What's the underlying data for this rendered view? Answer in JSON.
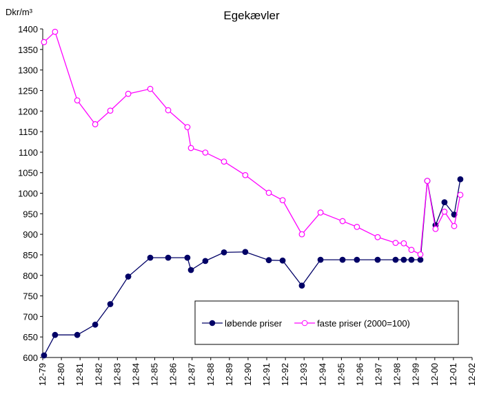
{
  "chart_data": {
    "type": "line",
    "title": "Egekævler",
    "y_label": "Dkr/m³",
    "x": [
      1980.07,
      1980.66,
      1981.85,
      1982.81,
      1983.62,
      1984.58,
      1985.76,
      1986.72,
      1987.75,
      1987.94,
      1988.71,
      1989.71,
      1990.85,
      1992.11,
      1992.85,
      1993.88,
      1994.88,
      1996.06,
      1996.83,
      1997.94,
      1998.9,
      1999.34,
      1999.75,
      2000.23,
      2000.6,
      2001.04,
      2001.52,
      2002.04,
      2002.37
    ],
    "series": [
      {
        "name": "løbende priser",
        "color": "#000066",
        "marker": "filled",
        "values": [
          605,
          655,
          655,
          680,
          730,
          797,
          843,
          843,
          843,
          813,
          835,
          856,
          857,
          837,
          836,
          775,
          838,
          838,
          838,
          838,
          838,
          838,
          838,
          838,
          1030,
          922,
          978,
          948,
          1034
        ]
      },
      {
        "name": "faste priser (2000=100)",
        "color": "#ff00ff",
        "marker": "open",
        "values": [
          1368,
          1393,
          1226,
          1168,
          1201,
          1242,
          1254,
          1202,
          1161,
          1110,
          1099,
          1077,
          1044,
          1001,
          983,
          900,
          953,
          932,
          918,
          893,
          879,
          878,
          862,
          851,
          1030,
          913,
          955,
          920,
          996
        ]
      }
    ],
    "xlim": [
      1980,
      2003
    ],
    "xticks": [
      {
        "value": 1980,
        "label": "12-79"
      },
      {
        "value": 1981,
        "label": "12-80"
      },
      {
        "value": 1982,
        "label": "12-81"
      },
      {
        "value": 1983,
        "label": "12-82"
      },
      {
        "value": 1984,
        "label": "12-83"
      },
      {
        "value": 1985,
        "label": "12-84"
      },
      {
        "value": 1986,
        "label": "12-85"
      },
      {
        "value": 1987,
        "label": "12-86"
      },
      {
        "value": 1988,
        "label": "12-87"
      },
      {
        "value": 1989,
        "label": "12-88"
      },
      {
        "value": 1990,
        "label": "12-89"
      },
      {
        "value": 1991,
        "label": "12-90"
      },
      {
        "value": 1992,
        "label": "12-91"
      },
      {
        "value": 1993,
        "label": "12-92"
      },
      {
        "value": 1994,
        "label": "12-93"
      },
      {
        "value": 1995,
        "label": "12-94"
      },
      {
        "value": 1996,
        "label": "12-95"
      },
      {
        "value": 1997,
        "label": "12-96"
      },
      {
        "value": 1998,
        "label": "12-97"
      },
      {
        "value": 1999,
        "label": "12-98"
      },
      {
        "value": 2000,
        "label": "12-99"
      },
      {
        "value": 2001,
        "label": "12-00"
      },
      {
        "value": 2002,
        "label": "12-01"
      },
      {
        "value": 2003,
        "label": "12-02"
      }
    ],
    "ylim": [
      600,
      1400
    ],
    "yticks": [
      600,
      650,
      700,
      750,
      800,
      850,
      900,
      950,
      1000,
      1050,
      1100,
      1150,
      1200,
      1250,
      1300,
      1350,
      1400
    ],
    "grid": false,
    "legend": "lower right"
  }
}
